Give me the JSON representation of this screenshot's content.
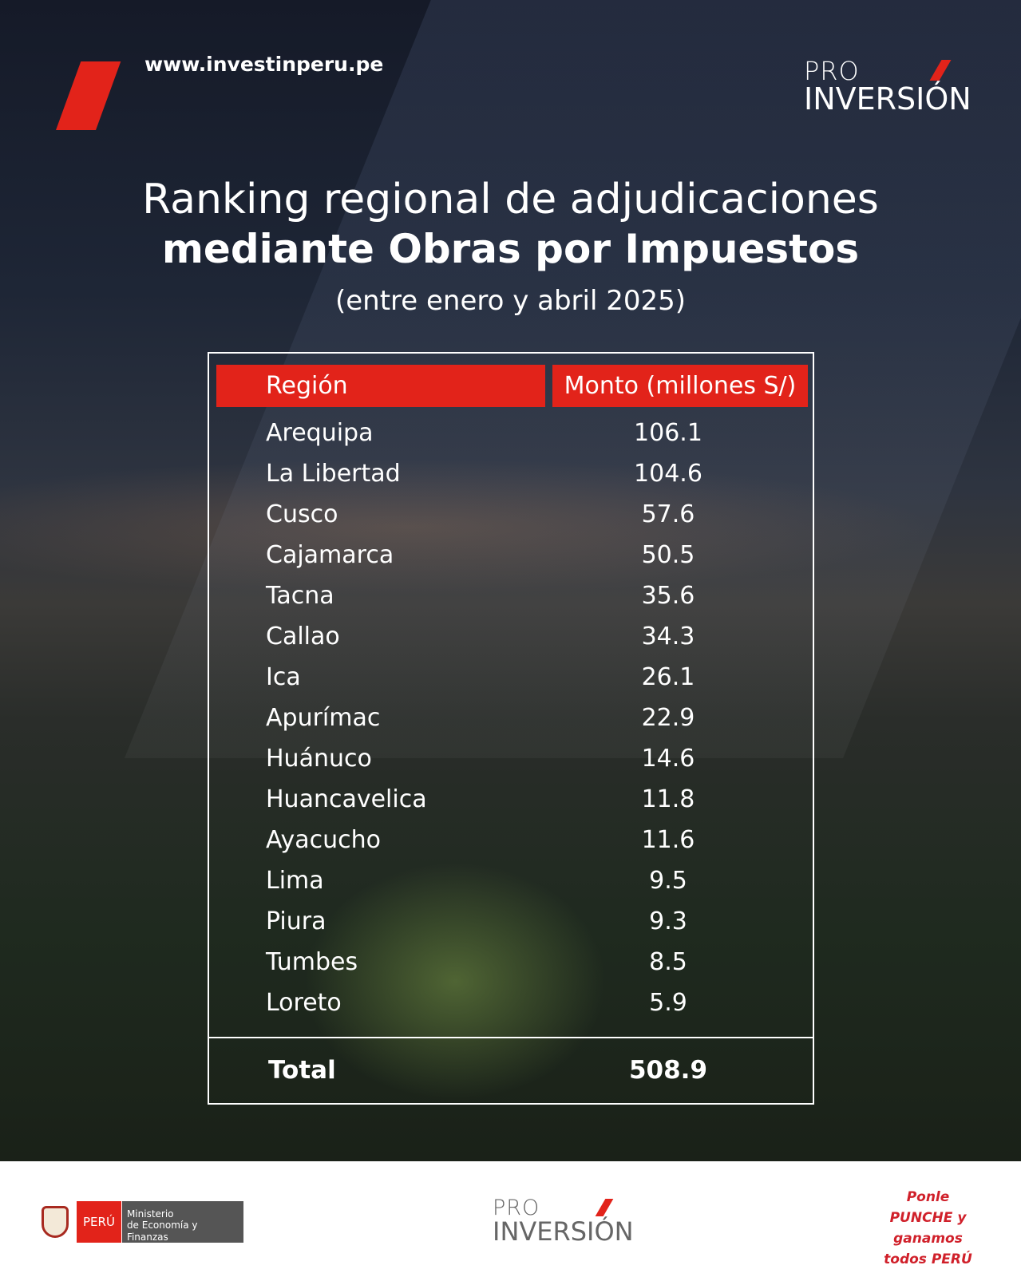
{
  "header": {
    "url": "www.investinperu.pe",
    "logo_pro": "PRO",
    "logo_inversion": "INVERSIÓN"
  },
  "title": {
    "line1": "Ranking regional de adjudicaciones",
    "line2": "mediante Obras por Impuestos",
    "line3": "(entre enero y abril 2025)"
  },
  "table": {
    "headers": [
      "Región",
      "Monto (millones S/)"
    ],
    "rows": [
      {
        "region": "Arequipa",
        "monto": "106.1"
      },
      {
        "region": "La Libertad",
        "monto": "104.6"
      },
      {
        "region": "Cusco",
        "monto": "57.6"
      },
      {
        "region": "Cajamarca",
        "monto": "50.5"
      },
      {
        "region": "Tacna",
        "monto": "35.6"
      },
      {
        "region": "Callao",
        "monto": "34.3"
      },
      {
        "region": "Ica",
        "monto": "26.1"
      },
      {
        "region": "Apurímac",
        "monto": "22.9"
      },
      {
        "region": "Huánuco",
        "monto": "14.6"
      },
      {
        "region": "Huancavelica",
        "monto": "11.8"
      },
      {
        "region": "Ayacucho",
        "monto": "11.6"
      },
      {
        "region": "Lima",
        "monto": "9.5"
      },
      {
        "region": "Piura",
        "monto": "9.3"
      },
      {
        "region": "Tumbes",
        "monto": "8.5"
      },
      {
        "region": "Loreto",
        "monto": "5.9"
      }
    ],
    "total_label": "Total",
    "total_value": "508.9"
  },
  "footer": {
    "peru": "PERÚ",
    "ministerio_line1": "Ministerio",
    "ministerio_line2": "de Economía y Finanzas",
    "logo_pro": "PRO",
    "logo_inversion": "INVERSIÓN",
    "punche": "Ponle PUNCHE y ganamos todos PERÚ"
  },
  "colors": {
    "accent": "#e2231a"
  }
}
